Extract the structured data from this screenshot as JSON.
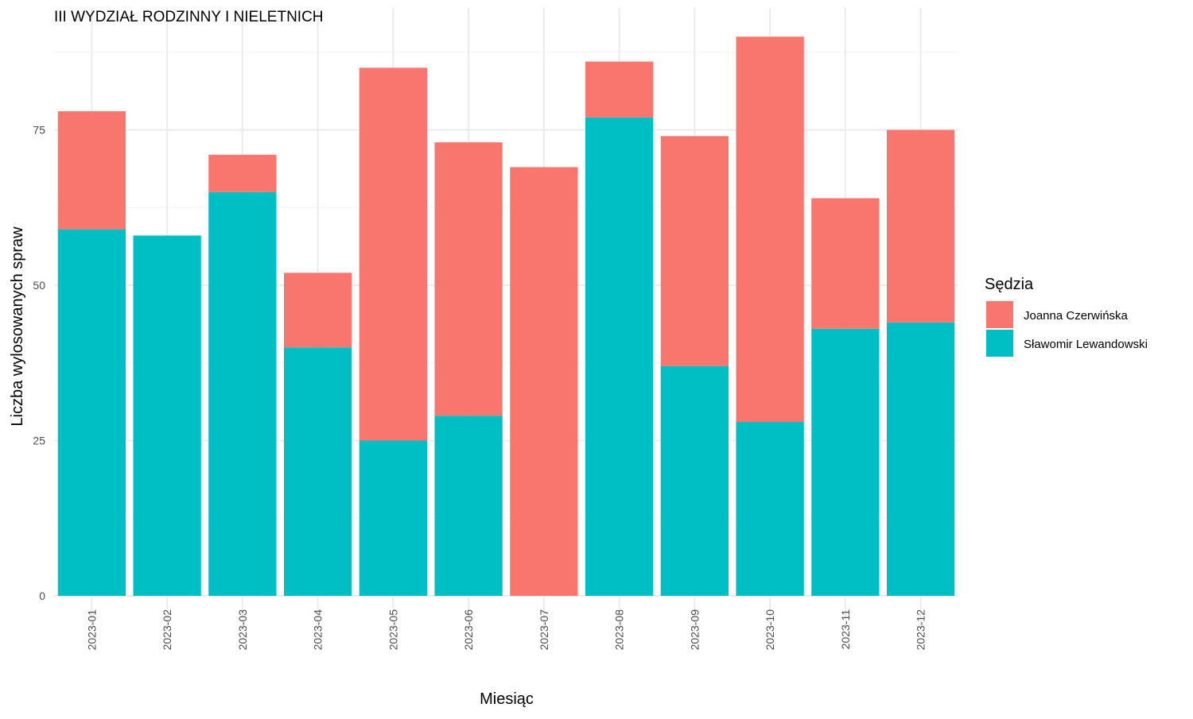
{
  "chart_data": {
    "type": "bar",
    "stacked": true,
    "title": "III WYDZIAŁ RODZINNY I NIELETNICH",
    "xlabel": "Miesiąc",
    "ylabel": "Liczba wylosowanych spraw",
    "categories": [
      "2023-01",
      "2023-02",
      "2023-03",
      "2023-04",
      "2023-05",
      "2023-06",
      "2023-07",
      "2023-08",
      "2023-09",
      "2023-10",
      "2023-11",
      "2023-12"
    ],
    "series": [
      {
        "name": "Sławomir Lewandowski",
        "color": "#00BFC4",
        "values": [
          59,
          58,
          65,
          40,
          25,
          29,
          0,
          77,
          37,
          28,
          43,
          44
        ]
      },
      {
        "name": "Joanna Czerwińska",
        "color": "#F8766D",
        "values": [
          19,
          0,
          6,
          12,
          60,
          44,
          69,
          9,
          37,
          62,
          21,
          31
        ]
      }
    ],
    "yticks": [
      0,
      25,
      50,
      75
    ],
    "ylim": [
      0,
      94
    ],
    "grid": true,
    "legend": {
      "title": "Sędzia",
      "position": "right",
      "entries": [
        {
          "label": "Joanna Czerwińska",
          "color": "#F8766D"
        },
        {
          "label": "Sławomir Lewandowski",
          "color": "#00BFC4"
        }
      ]
    }
  }
}
